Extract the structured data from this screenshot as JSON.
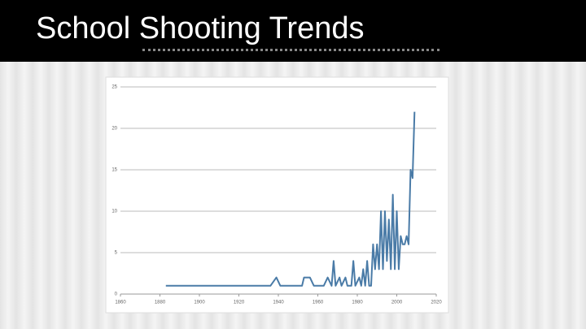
{
  "title": "School Shooting Trends",
  "chart_data": {
    "type": "line",
    "color": "#4a7ba7",
    "grid": true,
    "xlim": [
      1860,
      2020
    ],
    "xticks": [
      1860,
      1880,
      1900,
      1920,
      1940,
      1960,
      1980,
      2000,
      2020
    ],
    "ylim": [
      0,
      25
    ],
    "yticks": [
      0,
      5,
      10,
      15,
      20,
      25
    ],
    "x": [
      1883,
      1936,
      1939,
      1941,
      1952,
      1953,
      1956,
      1958,
      1963,
      1965,
      1967,
      1968,
      1969,
      1971,
      1972,
      1974,
      1975,
      1977,
      1978,
      1979,
      1981,
      1982,
      1983,
      1984,
      1985,
      1986,
      1987,
      1988,
      1989,
      1990,
      1991,
      1992,
      1993,
      1994,
      1995,
      1996,
      1997,
      1998,
      1999,
      2000,
      2001,
      2002,
      2003,
      2004,
      2005,
      2006,
      2007,
      2008,
      2009
    ],
    "values": [
      1,
      1,
      2,
      1,
      1,
      2,
      2,
      1,
      1,
      2,
      1,
      4,
      1,
      2,
      1,
      2,
      1,
      1,
      4,
      1,
      2,
      1,
      3,
      1,
      4,
      1,
      1,
      6,
      3,
      6,
      3,
      10,
      3,
      10,
      4,
      9,
      3,
      12,
      3,
      10,
      3,
      7,
      6,
      6,
      7,
      6,
      15,
      14,
      22
    ]
  }
}
